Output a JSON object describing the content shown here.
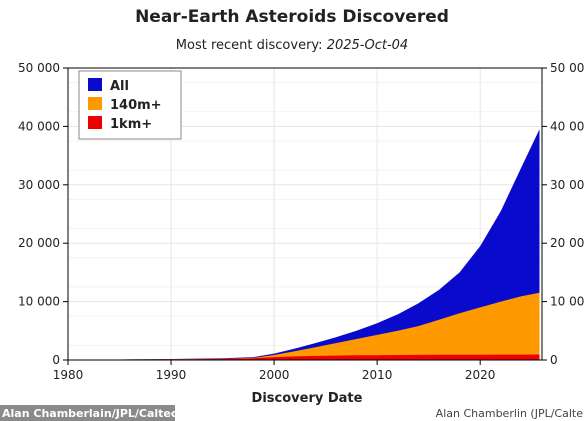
{
  "chart_data": {
    "type": "area",
    "title": "Near-Earth Asteroids Discovered",
    "subtitle_prefix": "Most recent discovery: ",
    "subtitle_date": "2025-Oct-04",
    "xlabel": "Discovery Date",
    "ylabel": "",
    "xlim": [
      1980,
      2026
    ],
    "ylim": [
      0,
      50000
    ],
    "x_ticks": [
      1980,
      1990,
      2000,
      2010,
      2020
    ],
    "y_ticks": [
      0,
      10000,
      20000,
      30000,
      40000,
      50000
    ],
    "y_tick_labels": [
      "0",
      "10 000",
      "20 000",
      "30 000",
      "40 000",
      "50 000"
    ],
    "grid": true,
    "legend_position": "top-left",
    "x": [
      1980,
      1985,
      1990,
      1995,
      1998,
      2000,
      2002,
      2004,
      2006,
      2008,
      2010,
      2012,
      2014,
      2016,
      2018,
      2020,
      2022,
      2024,
      2025.76
    ],
    "series": [
      {
        "name": "All",
        "color": "#0a0acc",
        "values": [
          50,
          90,
          170,
          300,
          500,
          1100,
          1950,
          2900,
          3900,
          5000,
          6300,
          7800,
          9700,
          12000,
          15000,
          19500,
          25500,
          33000,
          39500
        ]
      },
      {
        "name": "140m+",
        "color": "#ff9900",
        "values": [
          40,
          70,
          130,
          220,
          380,
          850,
          1500,
          2200,
          2900,
          3600,
          4300,
          5000,
          5800,
          6900,
          8000,
          9000,
          10000,
          10900,
          11500
        ]
      },
      {
        "name": "1km+",
        "color": "#ee0000",
        "values": [
          30,
          60,
          110,
          180,
          300,
          500,
          620,
          700,
          760,
          800,
          830,
          850,
          870,
          885,
          900,
          910,
          920,
          930,
          935
        ]
      }
    ]
  },
  "credits": {
    "bottom_left": "Alan Chamberlain/JPL/Caltech",
    "bottom_right": "Alan Chamberlin (JPL/Calte"
  }
}
